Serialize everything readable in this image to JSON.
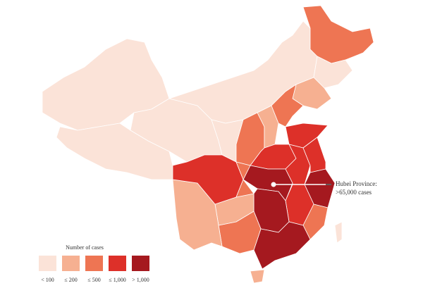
{
  "legend": {
    "title": "Number of cases",
    "items": [
      {
        "label": "< 100",
        "color": "#fbe3d8"
      },
      {
        "label": "≤ 200",
        "color": "#f6b091"
      },
      {
        "label": "≤ 500",
        "color": "#ee7553"
      },
      {
        "label": "≤ 1,000",
        "color": "#dd3029"
      },
      {
        "label": "> 1,000",
        "color": "#a5191f"
      }
    ]
  },
  "annotation": {
    "lines": [
      "Hubei Province:",
      ">65,000 cases"
    ]
  }
}
